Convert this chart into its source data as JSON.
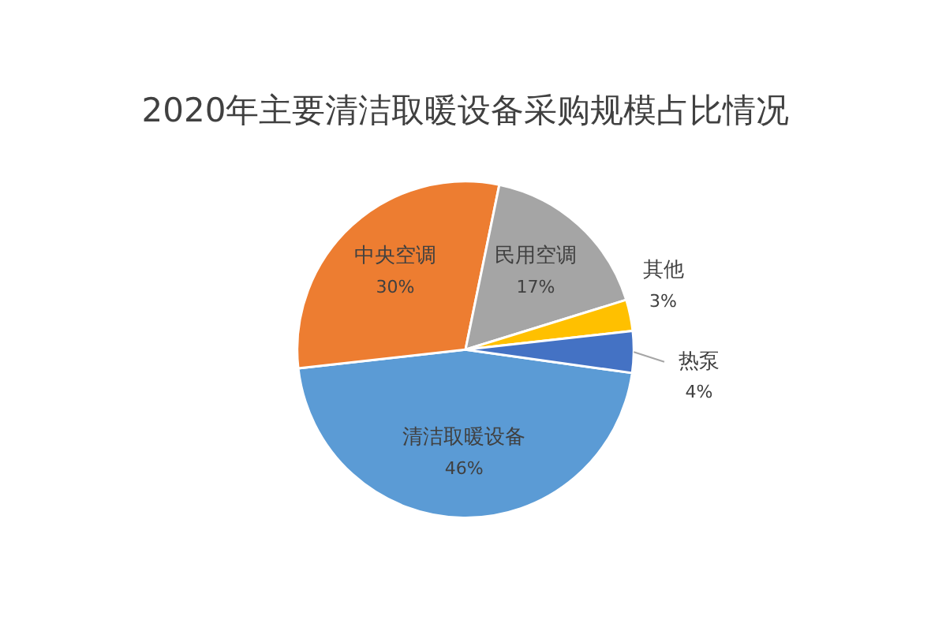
{
  "chart_data": {
    "type": "pie",
    "title": "2020年主要清洁取暖设备采购规模占比情况",
    "categories": [
      "清洁取暖设备",
      "中央空调",
      "民用空调",
      "其他",
      "热泵"
    ],
    "values": [
      46,
      30,
      17,
      3,
      4
    ],
    "value_labels": [
      "46%",
      "30%",
      "17%",
      "3%",
      "4%"
    ],
    "colors": [
      "#5b9bd5",
      "#ed7d31",
      "#a5a5a5",
      "#ffc000",
      "#4472c4"
    ],
    "legend": false
  }
}
